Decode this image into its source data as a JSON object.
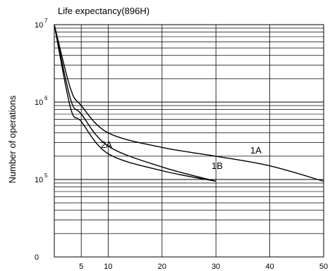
{
  "chart_data": {
    "type": "line",
    "title": "Life expectancy(896H)",
    "ylabel": "Number of operations",
    "xlabel": "",
    "x_ticks": [
      5,
      10,
      20,
      30,
      40,
      50
    ],
    "y_scale": "log",
    "y_ticks": [
      {
        "base": "10",
        "exp": "7",
        "value": 10000000
      },
      {
        "base": "10",
        "exp": "6",
        "value": 1000000
      },
      {
        "base": "10",
        "exp": "5",
        "value": 100000
      },
      {
        "base": "0",
        "exp": "",
        "value": 10000
      }
    ],
    "x_origin_label": "",
    "grid": true,
    "series": [
      {
        "name": "1A",
        "points": [
          [
            0,
            10000000
          ],
          [
            3,
            1500000
          ],
          [
            5,
            900000
          ],
          [
            10,
            400000
          ],
          [
            20,
            260000
          ],
          [
            30,
            200000
          ],
          [
            40,
            150000
          ],
          [
            50,
            95000
          ]
        ]
      },
      {
        "name": "1B",
        "points": [
          [
            0,
            10000000
          ],
          [
            3,
            1100000
          ],
          [
            5,
            700000
          ],
          [
            10,
            270000
          ],
          [
            20,
            145000
          ],
          [
            30,
            95000
          ]
        ]
      },
      {
        "name": "2A",
        "points": [
          [
            0,
            10000000
          ],
          [
            3,
            850000
          ],
          [
            5,
            560000
          ],
          [
            10,
            215000
          ],
          [
            20,
            130000
          ],
          [
            30,
            95000
          ]
        ]
      }
    ]
  }
}
